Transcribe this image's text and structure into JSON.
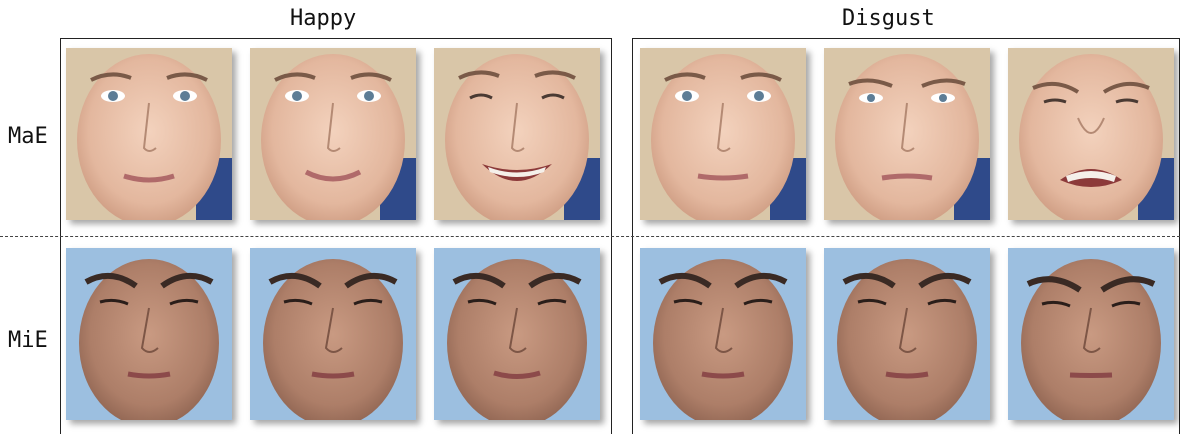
{
  "columns": [
    {
      "title": "Happy"
    },
    {
      "title": "Disgust"
    }
  ],
  "rows": [
    {
      "label": "MaE"
    },
    {
      "label": "MiE"
    }
  ],
  "faces": {
    "happy_mae": [
      "neutral",
      "slight smile",
      "broad smile"
    ],
    "happy_mie": [
      "neutral",
      "neutral",
      "subtle"
    ],
    "disgust_mae": [
      "neutral",
      "frown",
      "disgust"
    ],
    "disgust_mie": [
      "neutral",
      "neutral",
      "subtle"
    ]
  },
  "colors": {
    "female_bg": "#2f4a8a",
    "male_bg": "#9cbfe0",
    "female_skin": "#e8c2ab",
    "male_skin": "#b98a74"
  }
}
